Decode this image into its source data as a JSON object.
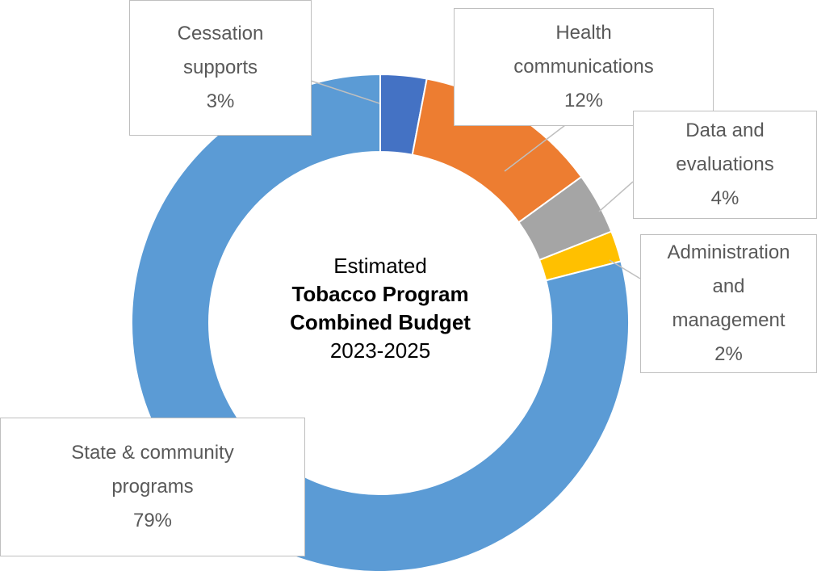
{
  "chart_data": {
    "type": "donut",
    "center_text": [
      "Estimated",
      "Tobacco Program",
      "Combined Budget",
      "2023-2025"
    ],
    "categories": [
      "Cessation supports",
      "Health communications",
      "Data and evaluations",
      "Administration and management",
      "State & community programs"
    ],
    "values": [
      3,
      12,
      4,
      2,
      79
    ],
    "value_labels": [
      "3%",
      "12%",
      "4%",
      "2%",
      "79%"
    ],
    "colors": [
      "#4472c4",
      "#ed7d31",
      "#a5a5a5",
      "#ffc000",
      "#5b9bd5"
    ]
  }
}
